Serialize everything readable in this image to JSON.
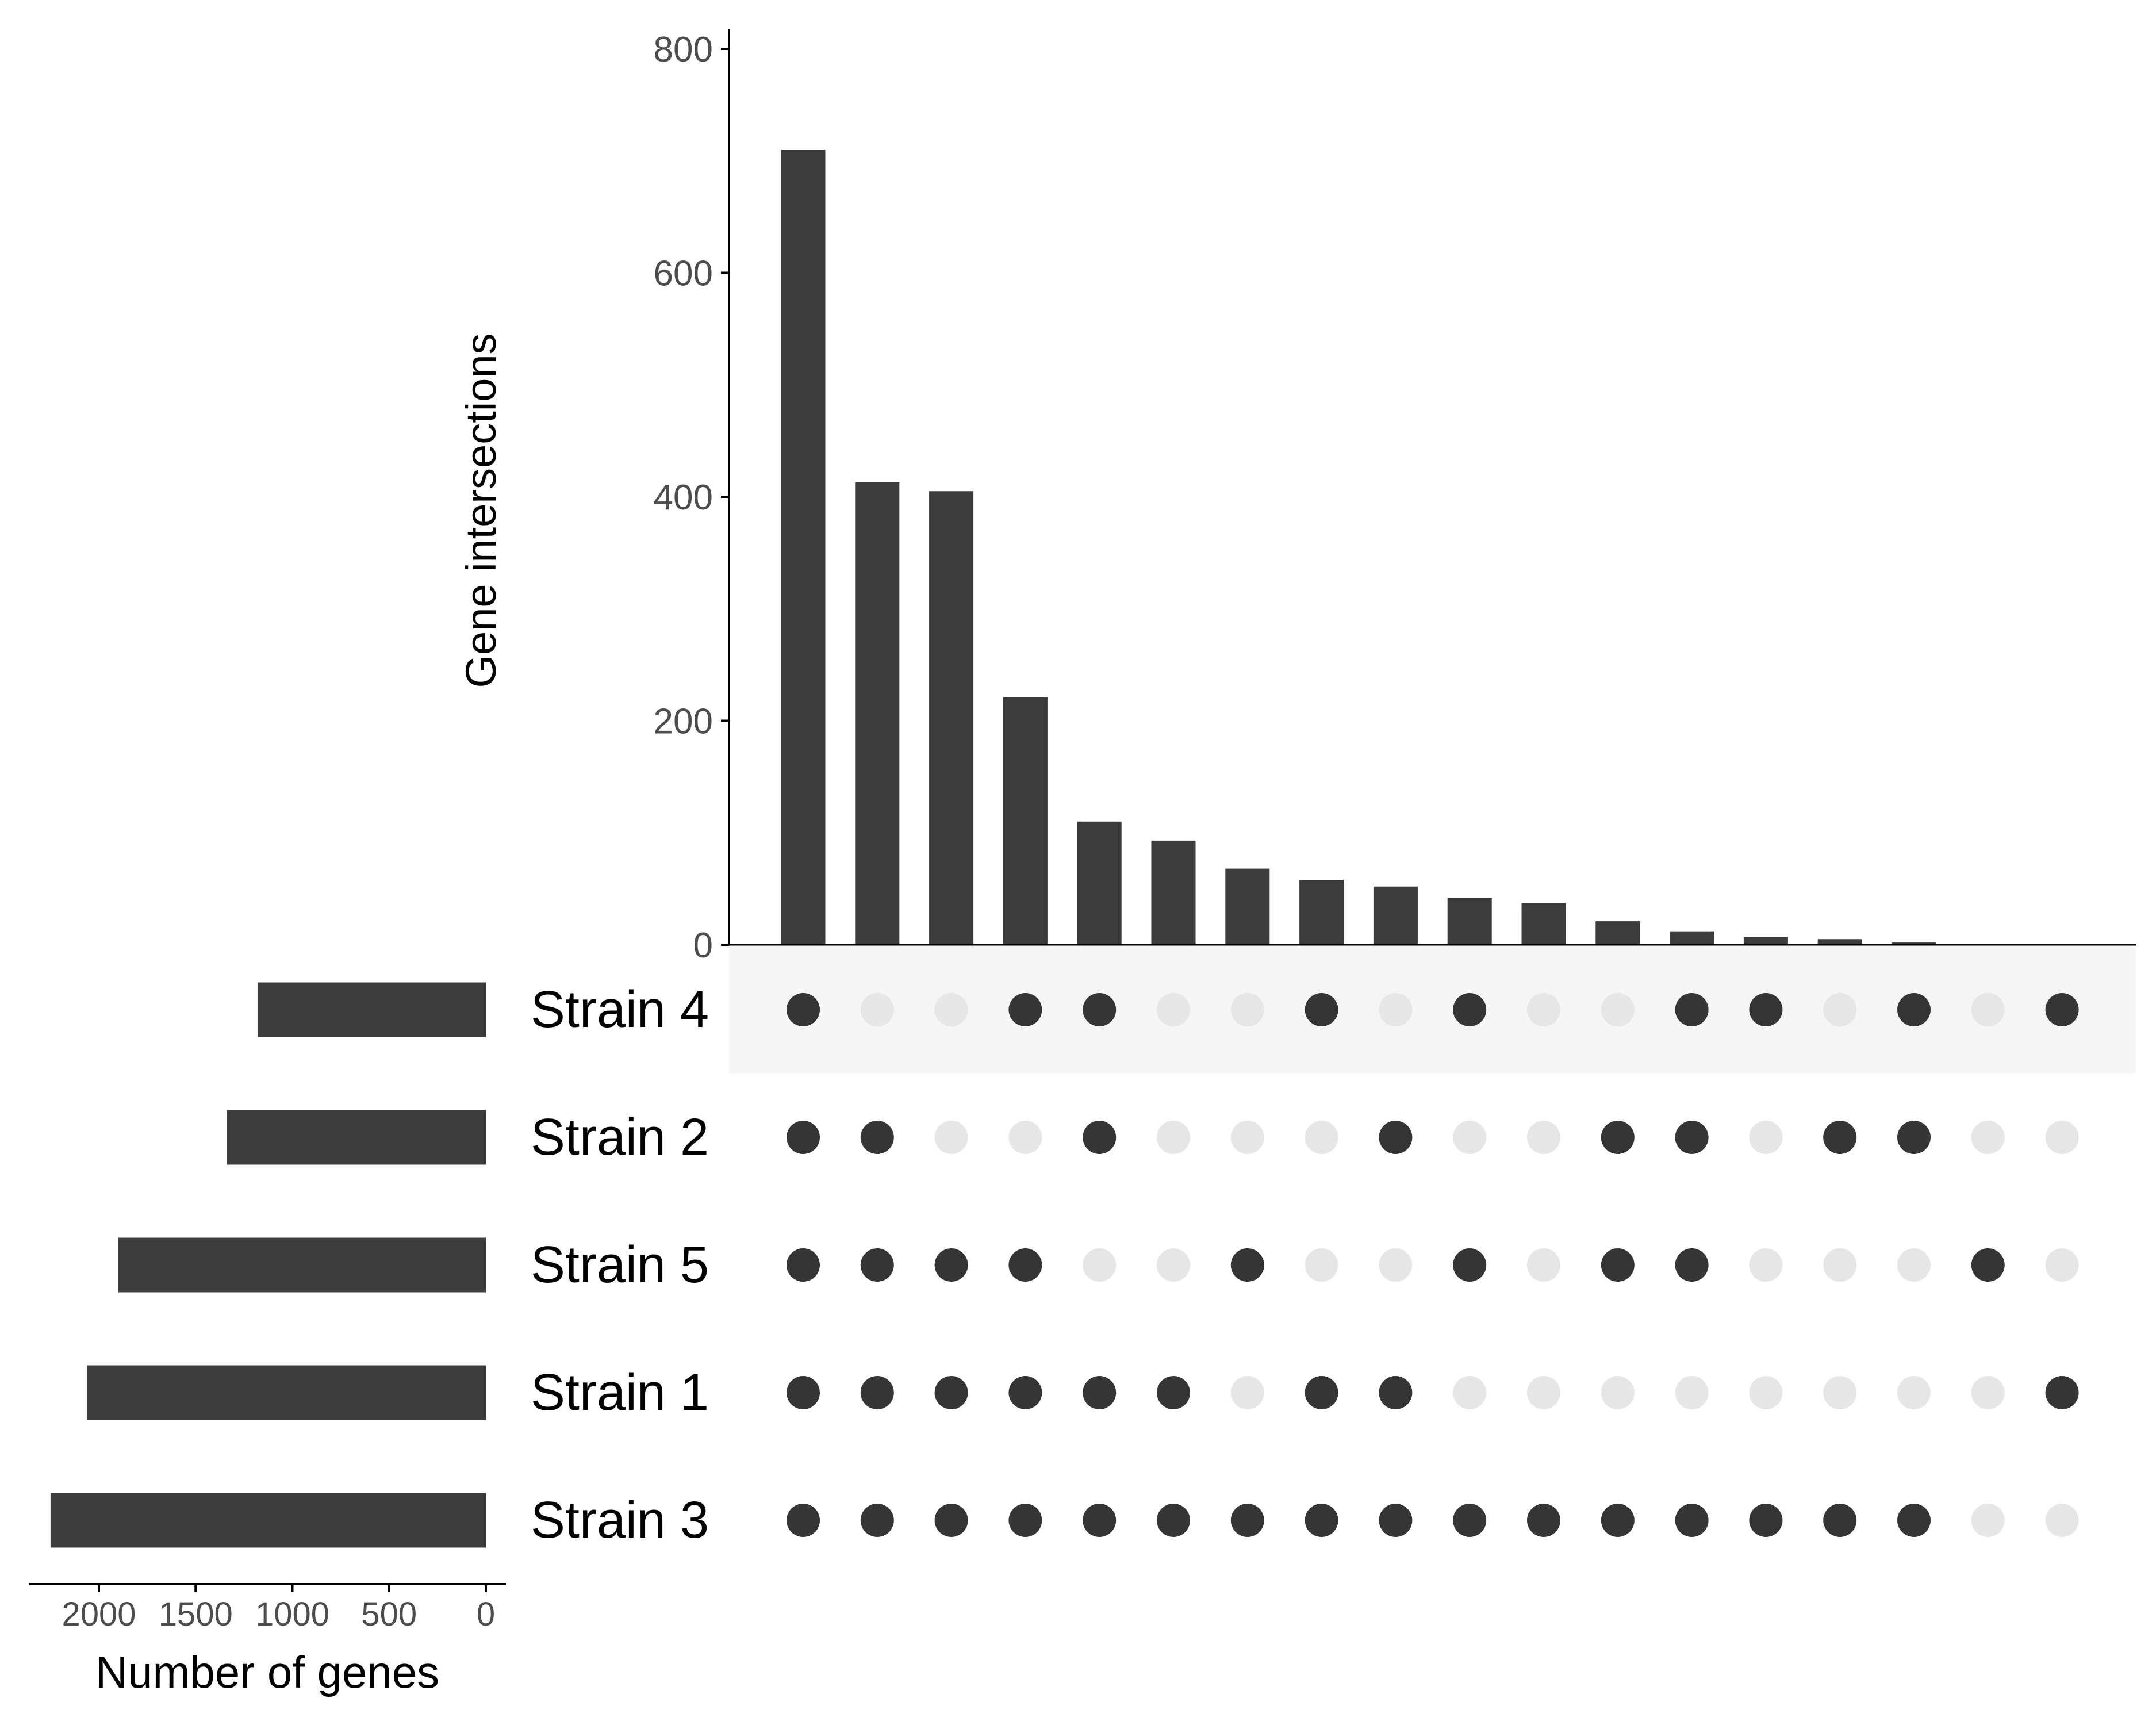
{
  "chart_data": {
    "type": "upset",
    "intersection_chart": {
      "type": "bar",
      "ylabel": "Gene intersections",
      "yticks": [
        0,
        200,
        400,
        600,
        800
      ],
      "ylim": [
        0,
        820
      ],
      "values": [
        710,
        413,
        405,
        221,
        110,
        93,
        68,
        58,
        52,
        42,
        37,
        21,
        12,
        7,
        5,
        2,
        0,
        0
      ]
    },
    "set_size_chart": {
      "type": "bar",
      "xlabel": "Number of genes",
      "xticks": [
        2000,
        1500,
        1000,
        500,
        0
      ],
      "xlim": [
        0,
        2350
      ],
      "sets": [
        {
          "name": "Strain 4",
          "size": 1180
        },
        {
          "name": "Strain 2",
          "size": 1340
        },
        {
          "name": "Strain 5",
          "size": 1900
        },
        {
          "name": "Strain 1",
          "size": 2060
        },
        {
          "name": "Strain 3",
          "size": 2250
        }
      ]
    },
    "matrix": [
      [
        1,
        0,
        0,
        1,
        1,
        0,
        0,
        1,
        0,
        1,
        0,
        0,
        1,
        1,
        0,
        1,
        0,
        1
      ],
      [
        1,
        1,
        0,
        0,
        1,
        0,
        0,
        0,
        1,
        0,
        0,
        1,
        1,
        0,
        1,
        1,
        0,
        0
      ],
      [
        1,
        1,
        1,
        1,
        0,
        0,
        1,
        0,
        0,
        1,
        0,
        1,
        1,
        0,
        0,
        0,
        1,
        0
      ],
      [
        1,
        1,
        1,
        1,
        1,
        1,
        0,
        1,
        1,
        0,
        0,
        0,
        0,
        0,
        0,
        0,
        0,
        1
      ],
      [
        1,
        1,
        1,
        1,
        1,
        1,
        1,
        1,
        1,
        1,
        1,
        1,
        1,
        1,
        1,
        1,
        0,
        0
      ]
    ],
    "colors": {
      "bar": "#3b3b3b",
      "dot_on": "#353535",
      "dot_off": "#e6e6e6",
      "stripe": "#f5f5f5",
      "axis": "#000000",
      "tick_text": "#4d4d4d"
    }
  }
}
